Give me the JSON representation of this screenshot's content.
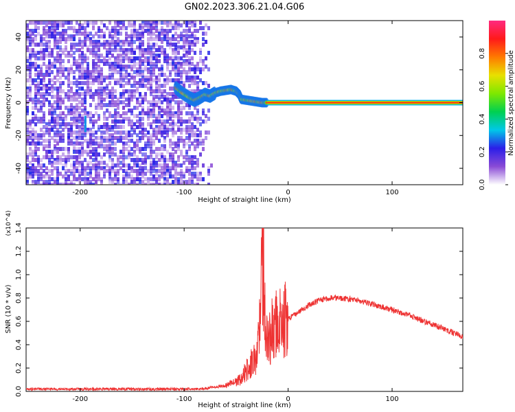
{
  "title": "GN02.2023.306.21.04.G06",
  "colors": {
    "snr_line": "#ee3333",
    "axis": "#000000",
    "colorbar_stops": [
      "#ffffff",
      "#8a4bd6",
      "#2b1ee8",
      "#00c8e8",
      "#00d050",
      "#7ee800",
      "#e8e000",
      "#ff7a00",
      "#ff1a1a",
      "#ff2a80"
    ]
  },
  "chart_data": [
    {
      "type": "heatmap",
      "title": "GN02.2023.306.21.04.G06",
      "xlabel": "Height of straight line (km)",
      "ylabel": "Frequency (Hz)",
      "xlim": [
        -252,
        168
      ],
      "ylim": [
        -50,
        50
      ],
      "xticks": [
        -200,
        -100,
        0,
        100
      ],
      "xticklabels": [
        "-200",
        "-100",
        "0",
        "100"
      ],
      "yticks": [
        -40,
        -20,
        0,
        20,
        40
      ],
      "yticklabels": [
        "-40",
        "-20",
        "0",
        "20",
        "40"
      ],
      "colorbar": {
        "label": "Normalized spectral amplitude",
        "range": [
          0,
          1
        ],
        "ticks": [
          0.0,
          0.2,
          0.4,
          0.6,
          0.8
        ],
        "ticklabels": [
          "0.0",
          "0.2",
          "0.4",
          "0.6",
          "0.8"
        ]
      },
      "features": {
        "noise_region_x": [
          -252,
          -75
        ],
        "fading_region_x": [
          -95,
          -75
        ],
        "signal_onset_x": -108,
        "transition_track": [
          [
            -108,
            9
          ],
          [
            -102,
            6
          ],
          [
            -95,
            3
          ],
          [
            -90,
            1.5
          ],
          [
            -85,
            3
          ],
          [
            -80,
            5
          ],
          [
            -75,
            4
          ],
          [
            -70,
            6
          ],
          [
            -65,
            7
          ],
          [
            -60,
            7.5
          ],
          [
            -55,
            8
          ],
          [
            -50,
            7
          ],
          [
            -47,
            5
          ],
          [
            -45,
            2
          ],
          [
            -40,
            1.5
          ],
          [
            -35,
            1
          ],
          [
            -30,
            0.5
          ],
          [
            -25,
            0
          ],
          [
            -20,
            0
          ]
        ],
        "steady_line": {
          "x": [
            -20,
            168
          ],
          "frequency": 0,
          "amplitude": 0.85
        },
        "isolated_feature": {
          "x": -195,
          "y": [
            -18,
            -8
          ]
        }
      }
    },
    {
      "type": "line",
      "xlabel": "Height of straight line (km)",
      "ylabel": "SNR (10 * v/v)",
      "y_multiplier": "(x10^4)",
      "xlim": [
        -252,
        168
      ],
      "ylim": [
        0,
        1.4
      ],
      "xticks": [
        -200,
        -100,
        0,
        100
      ],
      "xticklabels": [
        "-200",
        "-100",
        "0",
        "100"
      ],
      "yticks": [
        0.0,
        0.2,
        0.4,
        0.6,
        0.8,
        1.0,
        1.2,
        1.4
      ],
      "yticklabels": [
        "0.0",
        "0.2",
        "0.4",
        "0.6",
        "0.8",
        "1.0",
        "1.2",
        "1.4"
      ],
      "series": [
        {
          "x": [
            -252,
            -200,
            -150,
            -100,
            -80,
            -60,
            -50,
            -45,
            -40,
            -35,
            -30,
            -27,
            -25,
            -22,
            -20,
            -15,
            -10,
            -5,
            0,
            10,
            20,
            30,
            40,
            50,
            60,
            80,
            100,
            120,
            140,
            168
          ],
          "y": [
            0.02,
            0.02,
            0.02,
            0.02,
            0.025,
            0.05,
            0.08,
            0.12,
            0.18,
            0.25,
            0.3,
            0.6,
            1.3,
            0.7,
            0.4,
            0.55,
            0.6,
            0.6,
            0.62,
            0.68,
            0.74,
            0.78,
            0.8,
            0.8,
            0.79,
            0.75,
            0.7,
            0.64,
            0.57,
            0.47
          ]
        }
      ]
    }
  ]
}
